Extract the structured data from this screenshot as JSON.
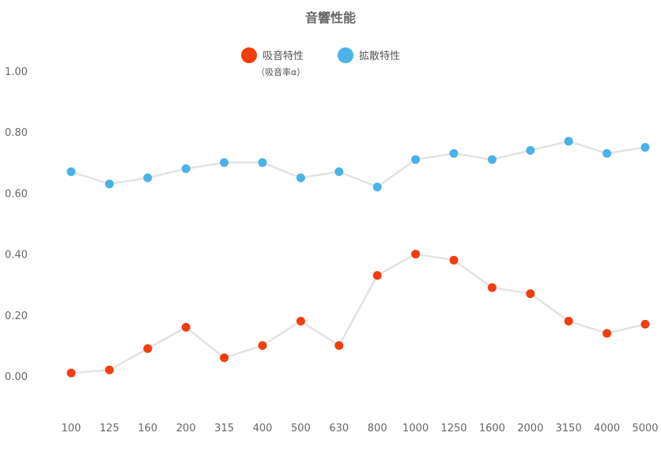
{
  "chart_data": {
    "type": "line",
    "title": "音響性能",
    "categories": [
      "100",
      "125",
      "160",
      "200",
      "315",
      "400",
      "500",
      "630",
      "800",
      "1000",
      "1250",
      "1600",
      "2000",
      "3150",
      "4000",
      "5000"
    ],
    "y_ticks": [
      "0.00",
      "0.20",
      "0.40",
      "0.60",
      "0.80",
      "1.00"
    ],
    "ylim": [
      -0.15,
      1.05
    ],
    "grid": false,
    "legend_position": "top-center",
    "series": [
      {
        "name": "吸音特性",
        "subtitle": "（吸音率α）",
        "color": "#f23e0c",
        "values": [
          0.01,
          0.02,
          0.09,
          0.16,
          0.06,
          0.1,
          0.18,
          0.1,
          0.33,
          0.4,
          0.38,
          0.29,
          0.27,
          0.18,
          0.14,
          0.17
        ]
      },
      {
        "name": "拡散特性",
        "color": "#49b2e6",
        "values": [
          0.67,
          0.63,
          0.65,
          0.68,
          0.7,
          0.7,
          0.65,
          0.67,
          0.62,
          0.71,
          0.73,
          0.71,
          0.74,
          0.77,
          0.73,
          0.75
        ]
      }
    ],
    "line_color": "#e3e3e3"
  }
}
